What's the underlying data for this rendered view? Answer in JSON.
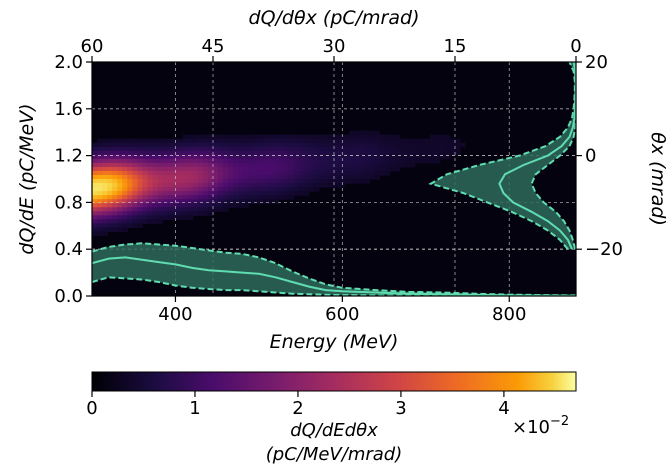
{
  "chart_data": {
    "type": "heatmap",
    "title": "",
    "xlabel_bottom": "Energy (MeV)",
    "xlabel_top": "dQ/dθx (pC/mrad)",
    "ylabel_left": "dQ/dE (pC/MeV)",
    "ylabel_right": "θx (mrad)",
    "x_range": [
      300,
      880
    ],
    "x_ticks": [
      "400",
      "600",
      "800"
    ],
    "x_tick_values": [
      400,
      600,
      800
    ],
    "y_range_left": [
      0.0,
      2.0
    ],
    "y_ticks_left": [
      "0.0",
      "0.4",
      "0.8",
      "1.2",
      "1.6",
      "2.0"
    ],
    "y_tick_values_left": [
      0.0,
      0.4,
      0.8,
      1.2,
      1.6,
      2.0
    ],
    "theta_range": [
      -30,
      20
    ],
    "y_ticks_right": [
      "−20",
      "0",
      "20"
    ],
    "y_tick_values_right": [
      -20,
      0,
      20
    ],
    "top_axis_range": [
      60,
      0
    ],
    "x_ticks_top": [
      "60",
      "45",
      "30",
      "15",
      "0"
    ],
    "x_tick_values_top": [
      60,
      45,
      30,
      15,
      0
    ],
    "grid": true,
    "colormap": "inferno",
    "heatmap_peak": {
      "theta_center_at_300MeV": -7,
      "theta_center_at_640MeV": 0,
      "theta_width": 5.5,
      "energy_decay": 130
    },
    "spectrum_dQdE": {
      "energy": [
        300,
        320,
        340,
        360,
        380,
        400,
        420,
        440,
        460,
        480,
        500,
        520,
        540,
        560,
        580,
        600,
        640,
        680,
        720,
        760,
        800,
        840,
        880
      ],
      "mean": [
        0.28,
        0.32,
        0.33,
        0.31,
        0.29,
        0.27,
        0.24,
        0.22,
        0.21,
        0.2,
        0.19,
        0.16,
        0.12,
        0.08,
        0.05,
        0.04,
        0.03,
        0.02,
        0.015,
        0.01,
        0.005,
        0.003,
        0.002
      ],
      "upper": [
        0.38,
        0.42,
        0.44,
        0.45,
        0.44,
        0.43,
        0.41,
        0.39,
        0.37,
        0.36,
        0.33,
        0.28,
        0.21,
        0.15,
        0.1,
        0.07,
        0.05,
        0.035,
        0.03,
        0.02,
        0.012,
        0.008,
        0.005
      ],
      "lower": [
        0.12,
        0.16,
        0.15,
        0.14,
        0.12,
        0.09,
        0.07,
        0.06,
        0.05,
        0.05,
        0.04,
        0.03,
        0.02,
        0.015,
        0.01,
        0.008,
        0.006,
        0.005,
        0.004,
        0.003,
        0.002,
        0.001,
        0.0
      ]
    },
    "profile_dQdtheta": {
      "theta": [
        -20,
        -18,
        -16,
        -14,
        -12,
        -10,
        -8,
        -6,
        -4,
        -2,
        0,
        2,
        4,
        6,
        8,
        10,
        12,
        14,
        16,
        18,
        20
      ],
      "mean": [
        0.5,
        1.0,
        2.0,
        3.5,
        5.5,
        7.8,
        9.0,
        9.5,
        8.8,
        6.5,
        3.5,
        1.8,
        0.8,
        0.4,
        0.2,
        0.1,
        0.1,
        0.05,
        0.05,
        0.1,
        0.3
      ],
      "upper": [
        1.0,
        2.0,
        3.5,
        5.5,
        8.0,
        11.0,
        14.0,
        18.0,
        16.0,
        12.0,
        7.0,
        3.8,
        2.0,
        1.0,
        0.5,
        0.3,
        0.2,
        0.15,
        0.15,
        0.3,
        0.8
      ],
      "lower": [
        0.1,
        0.4,
        0.8,
        1.5,
        2.5,
        4.0,
        5.0,
        5.5,
        5.0,
        3.5,
        2.0,
        0.8,
        0.3,
        0.1,
        0.05,
        0.02,
        0.0,
        0.0,
        0.0,
        0.0,
        0.0
      ]
    },
    "colorbar": {
      "range": [
        0,
        4.7
      ],
      "ticks": [
        "0",
        "1",
        "2",
        "3",
        "4"
      ],
      "tick_values": [
        0,
        1,
        2,
        3,
        4
      ],
      "multiplier": "×10",
      "multiplier_exp": "−2",
      "label_line1": "dQ/dEdθx",
      "label_line2": "(pC/MeV/mrad)"
    },
    "colors": {
      "overlay": "#5fdcb0",
      "overlay_fill": "#2f6b5c",
      "grid": "#cccccc"
    }
  }
}
